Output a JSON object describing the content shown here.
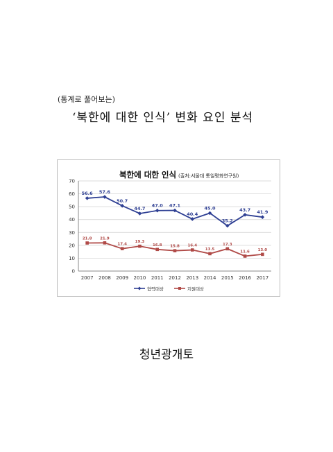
{
  "page": {
    "subtitle": "(통계로 풀어보는)",
    "title": "‘북한에 대한 인식’ 변화 요인 분석",
    "footer": "청년광개토"
  },
  "chart_data": {
    "type": "line",
    "title": "북한에 대한 인식",
    "source": "(출처:서울대 통일평화연구원)",
    "categories": [
      "2007",
      "2008",
      "2009",
      "2010",
      "2011",
      "2012",
      "2013",
      "2014",
      "2015",
      "2016",
      "2017"
    ],
    "ylim": [
      0,
      70
    ],
    "yticks": [
      0,
      10,
      20,
      30,
      40,
      50,
      60,
      70
    ],
    "grid": true,
    "legend_position": "bottom",
    "series": [
      {
        "name": "협력대상",
        "color": "#2e3f93",
        "values": [
          56.6,
          57.6,
          50.7,
          44.7,
          47.0,
          47.1,
          40.4,
          45.0,
          35.2,
          43.7,
          41.9
        ],
        "labels": [
          "56.6",
          "57.6",
          "50.7",
          "44.7",
          "47.0",
          "47.1",
          "40.4",
          "45.0",
          "35.2",
          "43.7",
          "41.9"
        ]
      },
      {
        "name": "지원대상",
        "color": "#b04a47",
        "values": [
          21.8,
          21.9,
          17.4,
          19.3,
          16.8,
          15.8,
          16.4,
          13.5,
          17.3,
          11.6,
          13.0
        ],
        "labels": [
          "21.8",
          "21.9",
          "17.4",
          "19.3",
          "16.8",
          "15.8",
          "16.4",
          "13.5",
          "17.3",
          "11.6",
          "13.0"
        ]
      }
    ]
  }
}
